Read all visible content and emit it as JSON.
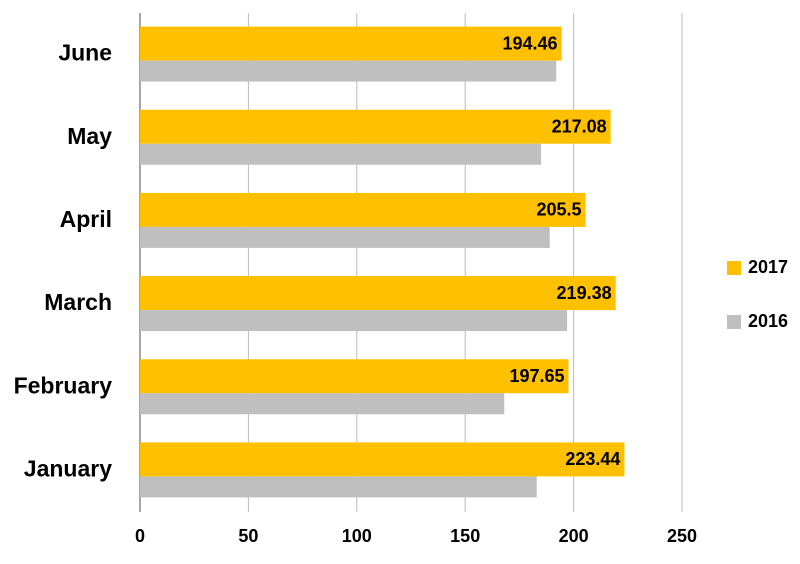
{
  "chart_data": {
    "type": "hbar",
    "categories": [
      "January",
      "February",
      "March",
      "April",
      "May",
      "June"
    ],
    "series": [
      {
        "name": "2017",
        "color": "#ffc000",
        "values": [
          223.44,
          197.65,
          219.38,
          205.5,
          217.08,
          194.46
        ]
      },
      {
        "name": "2016",
        "color": "#bfbfbf",
        "values": [
          183,
          168,
          197,
          189,
          185,
          192
        ]
      }
    ],
    "xlim": [
      0,
      250
    ],
    "xticks": [
      0,
      50,
      100,
      150,
      200,
      250
    ],
    "grid": true,
    "legend": "right"
  }
}
